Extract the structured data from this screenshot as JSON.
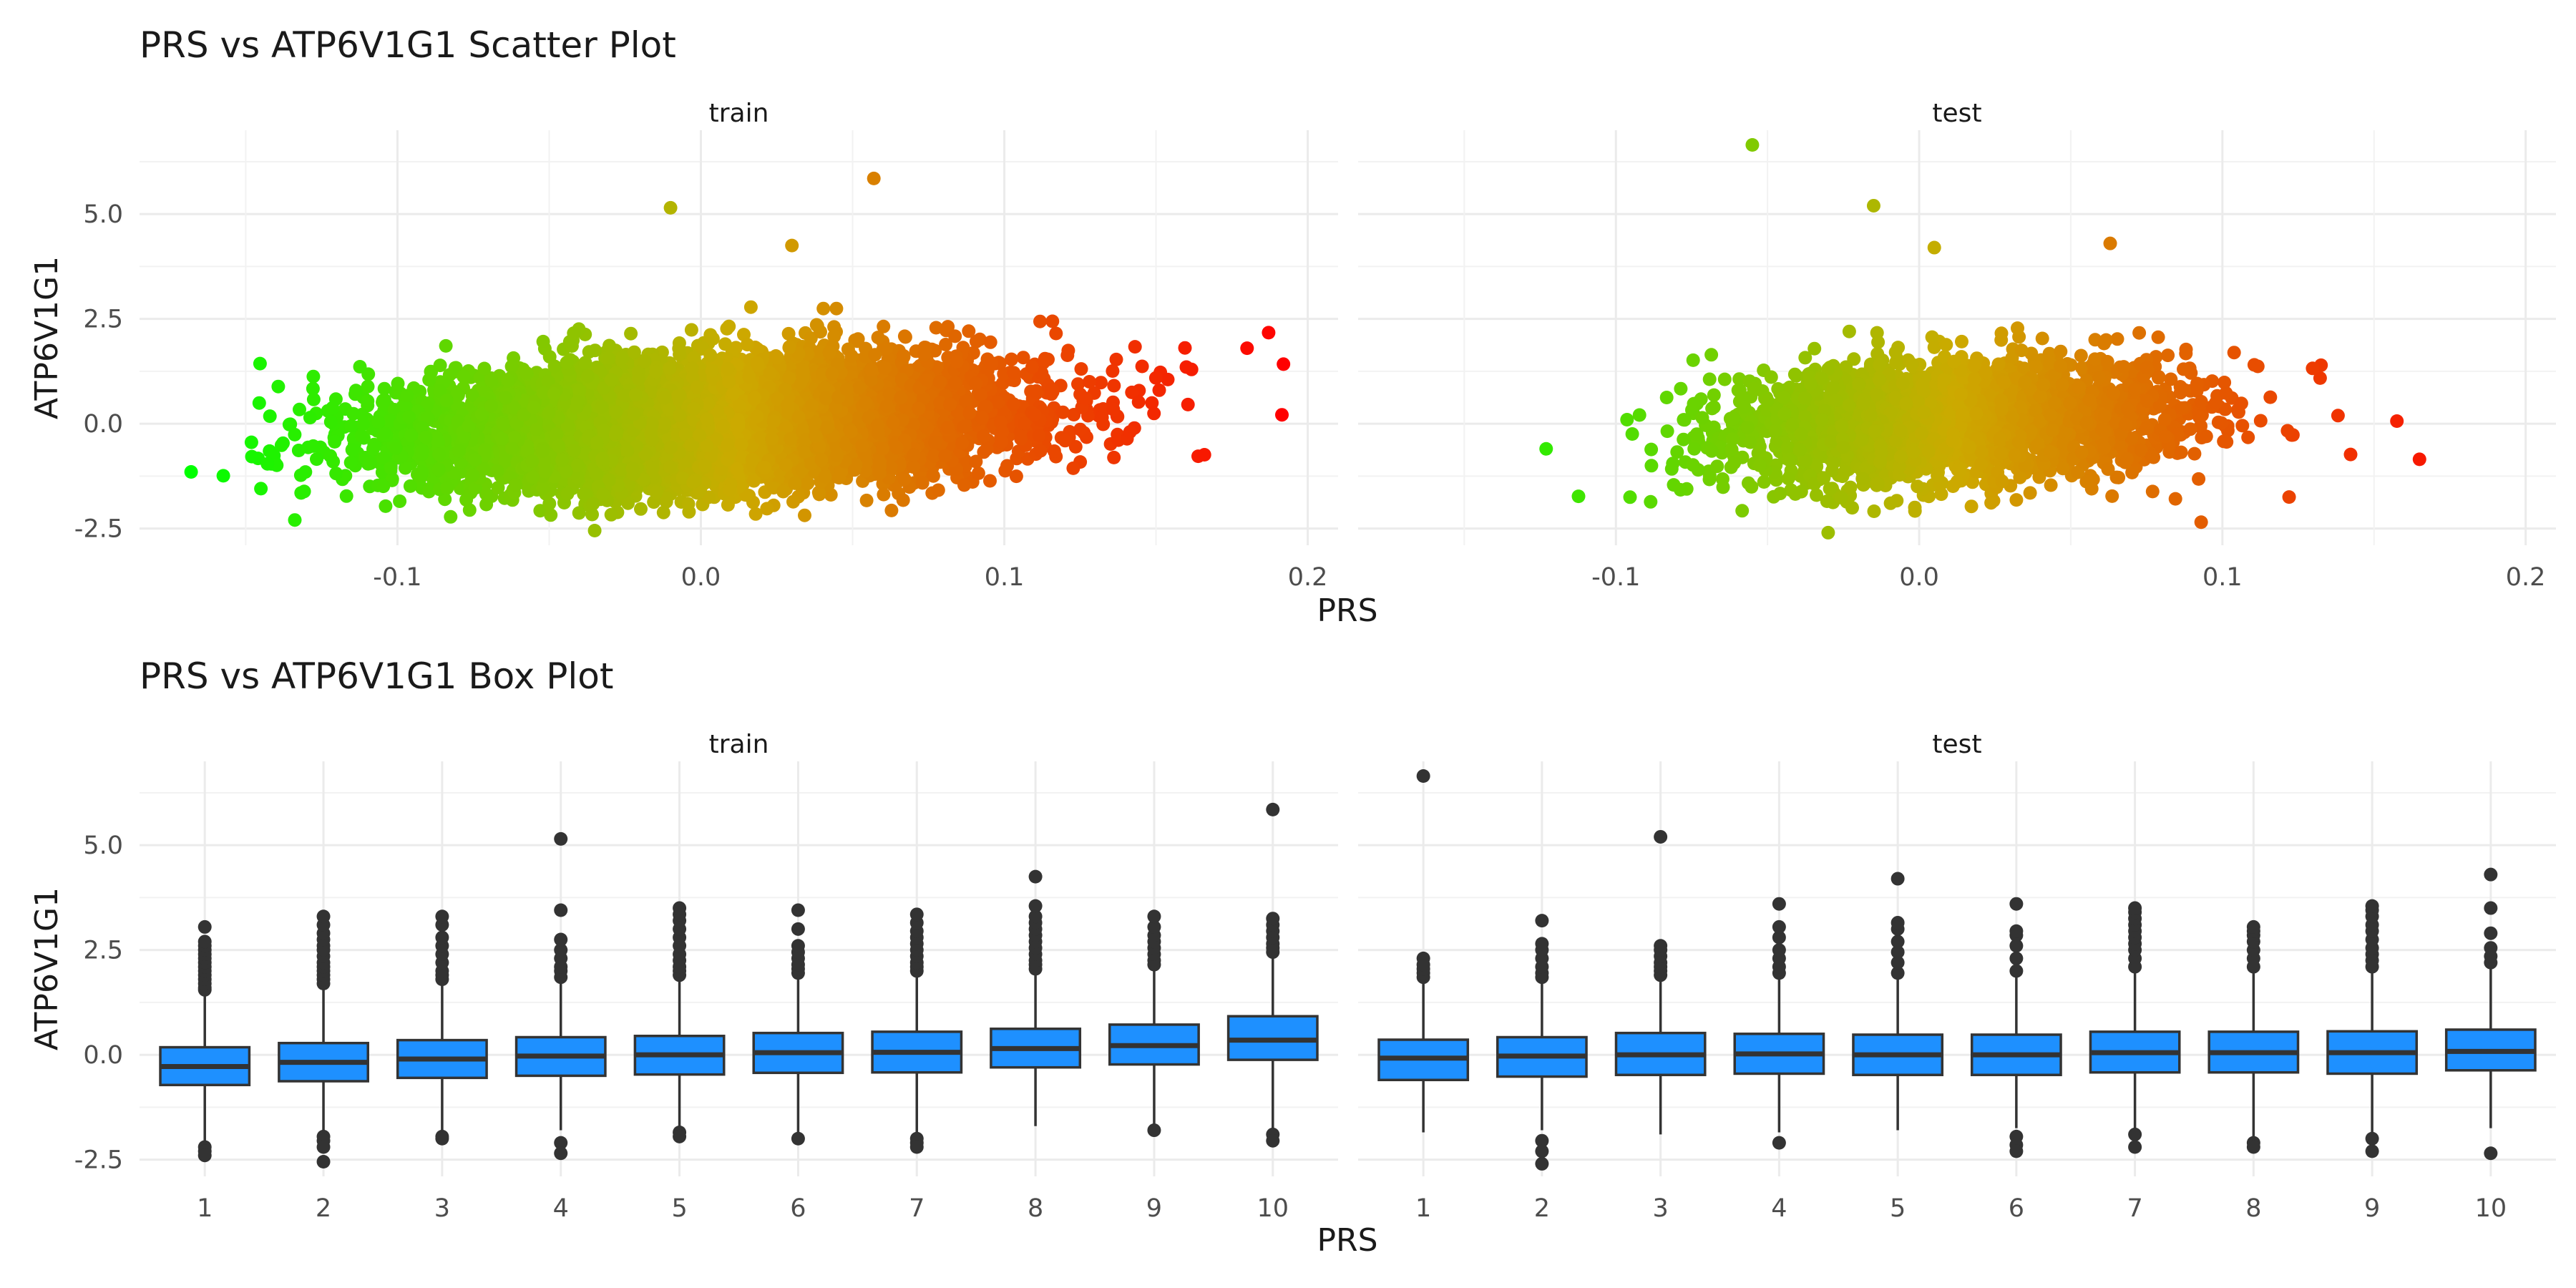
{
  "chart_data": [
    {
      "type": "scatter",
      "title": "PRS vs ATP6V1G1 Scatter Plot",
      "xlabel": "PRS",
      "ylabel": "ATP6V1G1",
      "facets": [
        "train",
        "test"
      ],
      "xlim": [
        -0.185,
        0.21
      ],
      "ylim": [
        -2.9,
        7.0
      ],
      "x_ticks": [
        -0.1,
        0.0,
        0.1,
        0.2
      ],
      "x_tick_labels": [
        "-0.1",
        "0.0",
        "0.1",
        "0.2"
      ],
      "y_ticks": [
        -2.5,
        0.0,
        2.5,
        5.0
      ],
      "y_tick_labels": [
        "-2.5",
        "0.0",
        "2.5",
        "5.0"
      ],
      "color_scale": {
        "low": "#00ff00",
        "mid": "#ccaa00",
        "high": "#ff0000",
        "mapped_to": "PRS"
      },
      "grid": true,
      "legend": "none",
      "panels": [
        {
          "facet": "train",
          "x_range": [
            -0.168,
            0.192
          ],
          "y_core_range": [
            -2.3,
            3.3
          ],
          "n_points_approx": 8000,
          "notable_points": [
            {
              "x": -0.168,
              "y": -1.15
            },
            {
              "x": -0.01,
              "y": 5.15
            },
            {
              "x": 0.057,
              "y": 5.85
            },
            {
              "x": 0.03,
              "y": 4.25
            },
            {
              "x": 0.18,
              "y": 1.8
            },
            {
              "x": 0.192,
              "y": 1.42
            },
            {
              "x": -0.035,
              "y": -2.55
            },
            {
              "x": -0.145,
              "y": -1.55
            },
            {
              "x": 0.16,
              "y": 1.35
            }
          ]
        },
        {
          "facet": "test",
          "x_range": [
            -0.123,
            0.165
          ],
          "y_core_range": [
            -2.2,
            3.3
          ],
          "n_points_approx": 2500,
          "notable_points": [
            {
              "x": -0.055,
              "y": 6.65
            },
            {
              "x": -0.015,
              "y": 5.2
            },
            {
              "x": 0.005,
              "y": 4.2
            },
            {
              "x": 0.063,
              "y": 4.3
            },
            {
              "x": -0.123,
              "y": -0.6
            },
            {
              "x": 0.165,
              "y": -0.85
            },
            {
              "x": -0.03,
              "y": -2.6
            },
            {
              "x": 0.093,
              "y": -2.35
            },
            {
              "x": 0.122,
              "y": -1.75
            }
          ]
        }
      ]
    },
    {
      "type": "box",
      "title": "PRS vs ATP6V1G1 Box Plot",
      "xlabel": "PRS",
      "ylabel": "ATP6V1G1",
      "facets": [
        "train",
        "test"
      ],
      "categories": [
        "1",
        "2",
        "3",
        "4",
        "5",
        "6",
        "7",
        "8",
        "9",
        "10"
      ],
      "ylim": [
        -2.9,
        7.0
      ],
      "y_ticks": [
        -2.5,
        0.0,
        2.5,
        5.0
      ],
      "y_tick_labels": [
        "-2.5",
        "0.0",
        "2.5",
        "5.0"
      ],
      "box_fill": "#1e90ff",
      "box_stroke": "#333333",
      "grid": true,
      "legend": "none",
      "panels": [
        {
          "facet": "train",
          "boxes": [
            {
              "q1": -0.72,
              "median": -0.28,
              "q3": 0.18,
              "lower": -2.05,
              "upper": 1.5,
              "outliers": [
                -2.2,
                -2.3,
                -2.4,
                1.55,
                1.6,
                1.7,
                1.8,
                1.9,
                2.0,
                2.1,
                2.2,
                2.3,
                2.4,
                2.5,
                2.6,
                2.7,
                3.05
              ]
            },
            {
              "q1": -0.63,
              "median": -0.18,
              "q3": 0.28,
              "lower": -1.9,
              "upper": 1.65,
              "outliers": [
                -1.95,
                -2.05,
                -2.2,
                -2.55,
                1.7,
                1.8,
                1.9,
                2.0,
                2.1,
                2.2,
                2.35,
                2.5,
                2.6,
                2.75,
                2.9,
                3.1,
                3.3
              ]
            },
            {
              "q1": -0.55,
              "median": -0.1,
              "q3": 0.35,
              "lower": -1.85,
              "upper": 1.75,
              "outliers": [
                -1.95,
                -2.0,
                1.8,
                1.9,
                2.0,
                2.2,
                2.4,
                2.6,
                2.8,
                3.1,
                3.3
              ]
            },
            {
              "q1": -0.5,
              "median": -0.03,
              "q3": 0.42,
              "lower": -1.8,
              "upper": 1.8,
              "outliers": [
                -2.1,
                -2.35,
                1.85,
                2.0,
                2.1,
                2.3,
                2.5,
                2.75,
                3.45,
                5.15
              ]
            },
            {
              "q1": -0.47,
              "median": 0.0,
              "q3": 0.45,
              "lower": -1.8,
              "upper": 1.85,
              "outliers": [
                -1.85,
                -1.95,
                1.9,
                2.0,
                2.1,
                2.25,
                2.4,
                2.6,
                2.8,
                3.0,
                3.2,
                3.35,
                3.5
              ]
            },
            {
              "q1": -0.43,
              "median": 0.05,
              "q3": 0.52,
              "lower": -1.9,
              "upper": 1.9,
              "outliers": [
                -2.0,
                1.95,
                2.05,
                2.15,
                2.3,
                2.45,
                2.6,
                3.0,
                3.45
              ]
            },
            {
              "q1": -0.42,
              "median": 0.06,
              "q3": 0.55,
              "lower": -1.95,
              "upper": 1.95,
              "outliers": [
                -2.0,
                -2.1,
                -2.2,
                2.0,
                2.1,
                2.2,
                2.35,
                2.5,
                2.65,
                2.8,
                2.95,
                3.15,
                3.35
              ]
            },
            {
              "q1": -0.3,
              "median": 0.15,
              "q3": 0.62,
              "lower": -1.7,
              "upper": 2.0,
              "outliers": [
                2.05,
                2.15,
                2.25,
                2.4,
                2.55,
                2.7,
                2.85,
                3.0,
                3.15,
                3.3,
                3.55,
                4.25
              ]
            },
            {
              "q1": -0.23,
              "median": 0.22,
              "q3": 0.72,
              "lower": -1.75,
              "upper": 2.1,
              "outliers": [
                -1.8,
                2.15,
                2.25,
                2.4,
                2.55,
                2.7,
                2.85,
                3.05,
                3.3
              ]
            },
            {
              "q1": -0.12,
              "median": 0.35,
              "q3": 0.92,
              "lower": -1.85,
              "upper": 2.4,
              "outliers": [
                -1.9,
                -2.05,
                2.45,
                2.55,
                2.65,
                2.8,
                2.95,
                3.1,
                3.25,
                5.85
              ]
            }
          ]
        },
        {
          "facet": "test",
          "boxes": [
            {
              "q1": -0.6,
              "median": -0.08,
              "q3": 0.36,
              "lower": -1.85,
              "upper": 1.75,
              "outliers": [
                1.85,
                1.95,
                2.05,
                2.15,
                2.3,
                6.65
              ]
            },
            {
              "q1": -0.52,
              "median": -0.03,
              "q3": 0.42,
              "lower": -1.8,
              "upper": 1.75,
              "outliers": [
                -2.05,
                -2.3,
                -2.6,
                1.85,
                1.95,
                2.1,
                2.3,
                2.5,
                2.65,
                3.2
              ]
            },
            {
              "q1": -0.48,
              "median": 0.0,
              "q3": 0.52,
              "lower": -1.9,
              "upper": 1.8,
              "outliers": [
                1.9,
                2.0,
                2.1,
                2.2,
                2.35,
                2.5,
                2.6,
                5.2
              ]
            },
            {
              "q1": -0.45,
              "median": 0.02,
              "q3": 0.5,
              "lower": -1.85,
              "upper": 1.85,
              "outliers": [
                -2.1,
                1.95,
                2.1,
                2.3,
                2.5,
                2.8,
                3.05,
                3.6
              ]
            },
            {
              "q1": -0.48,
              "median": 0.0,
              "q3": 0.48,
              "lower": -1.8,
              "upper": 1.85,
              "outliers": [
                1.95,
                2.2,
                2.45,
                2.7,
                3.0,
                3.15,
                4.2
              ]
            },
            {
              "q1": -0.48,
              "median": 0.0,
              "q3": 0.48,
              "lower": -1.75,
              "upper": 1.85,
              "outliers": [
                -1.95,
                -2.15,
                -2.3,
                2.0,
                2.3,
                2.6,
                2.85,
                2.95,
                3.6
              ]
            },
            {
              "q1": -0.42,
              "median": 0.05,
              "q3": 0.55,
              "lower": -1.8,
              "upper": 2.0,
              "outliers": [
                -1.9,
                -2.2,
                2.1,
                2.3,
                2.5,
                2.65,
                2.8,
                2.95,
                3.1,
                3.25,
                3.4,
                3.5
              ]
            },
            {
              "q1": -0.42,
              "median": 0.05,
              "q3": 0.55,
              "lower": -1.95,
              "upper": 2.0,
              "outliers": [
                -2.1,
                -2.2,
                2.1,
                2.3,
                2.5,
                2.7,
                2.85,
                2.95,
                3.05
              ]
            },
            {
              "q1": -0.45,
              "median": 0.05,
              "q3": 0.56,
              "lower": -1.85,
              "upper": 2.0,
              "outliers": [
                -2.0,
                -2.3,
                2.1,
                2.25,
                2.4,
                2.55,
                2.75,
                2.95,
                3.1,
                3.3,
                3.45,
                3.55
              ]
            },
            {
              "q1": -0.37,
              "median": 0.08,
              "q3": 0.6,
              "lower": -1.75,
              "upper": 2.1,
              "outliers": [
                -2.35,
                2.2,
                2.35,
                2.55,
                2.9,
                3.5,
                4.3
              ]
            }
          ]
        }
      ]
    }
  ]
}
